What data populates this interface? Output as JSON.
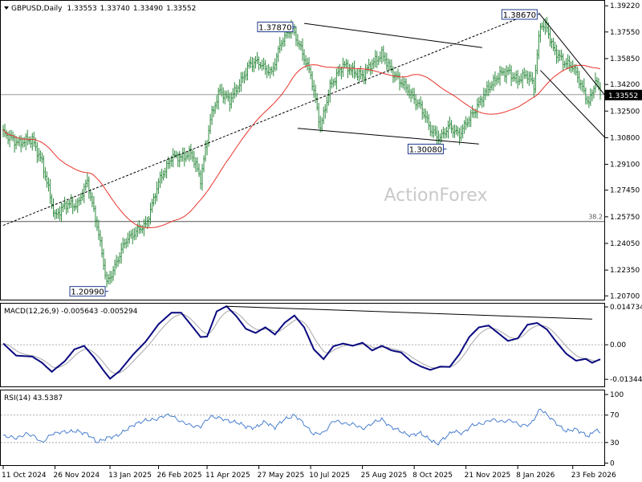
{
  "chart_data": [
    {
      "panel": "price",
      "type": "candlestick",
      "title": "GBPUSD,Daily",
      "ohlc": [
        "1.33553",
        "1.33740",
        "1.33490",
        "1.33552"
      ],
      "last_price": "1.33552",
      "watermark": "ActionForex",
      "ylim": [
        1.2046,
        1.3954
      ],
      "y_ticks": [
        "1.39220",
        "1.37550",
        "1.35850",
        "1.34200",
        "1.32500",
        "1.30800",
        "1.29100",
        "1.27450",
        "1.25750",
        "1.24050",
        "1.22350",
        "1.20700"
      ],
      "y_tick_values": [
        1.3922,
        1.3755,
        1.3585,
        1.342,
        1.325,
        1.308,
        1.291,
        1.2745,
        1.2575,
        1.2405,
        1.2235,
        1.207
      ],
      "x_ticks": [
        "11 Oct 2024",
        "26 Nov 2024",
        "13 Jan 2025",
        "26 Feb 2025",
        "11 Apr 2025",
        "27 May 2025",
        "10 Jul 2025",
        "25 Aug 2025",
        "8 Oct 2025",
        "21 Nov 2025",
        "8 Jan 2026",
        "23 Feb 2026"
      ],
      "x_tick_bars": [
        0,
        32,
        66,
        96,
        126,
        158,
        190,
        222,
        254,
        286,
        318,
        352
      ],
      "bar_count": 370,
      "anchors": [
        [
          0,
          1.3105
        ],
        [
          10,
          1.3045
        ],
        [
          18,
          1.307
        ],
        [
          24,
          1.292
        ],
        [
          32,
          1.258
        ],
        [
          40,
          1.266
        ],
        [
          46,
          1.265
        ],
        [
          52,
          1.28
        ],
        [
          58,
          1.252
        ],
        [
          64,
          1.215
        ],
        [
          70,
          1.228
        ],
        [
          76,
          1.243
        ],
        [
          82,
          1.248
        ],
        [
          88,
          1.252
        ],
        [
          96,
          1.279
        ],
        [
          104,
          1.296
        ],
        [
          110,
          1.295
        ],
        [
          116,
          1.299
        ],
        [
          122,
          1.281
        ],
        [
          128,
          1.32
        ],
        [
          134,
          1.338
        ],
        [
          140,
          1.332
        ],
        [
          146,
          1.342
        ],
        [
          152,
          1.355
        ],
        [
          158,
          1.356
        ],
        [
          166,
          1.349
        ],
        [
          172,
          1.37
        ],
        [
          178,
          1.378
        ],
        [
          184,
          1.365
        ],
        [
          190,
          1.348
        ],
        [
          196,
          1.315
        ],
        [
          202,
          1.34
        ],
        [
          210,
          1.355
        ],
        [
          216,
          1.35
        ],
        [
          222,
          1.348
        ],
        [
          228,
          1.355
        ],
        [
          234,
          1.362
        ],
        [
          240,
          1.35
        ],
        [
          246,
          1.344
        ],
        [
          252,
          1.335
        ],
        [
          258,
          1.328
        ],
        [
          264,
          1.313
        ],
        [
          270,
          1.308
        ],
        [
          276,
          1.315
        ],
        [
          282,
          1.31
        ],
        [
          288,
          1.32
        ],
        [
          294,
          1.33
        ],
        [
          300,
          1.34
        ],
        [
          306,
          1.348
        ],
        [
          312,
          1.35
        ],
        [
          318,
          1.345
        ],
        [
          324,
          1.348
        ],
        [
          328,
          1.342
        ],
        [
          332,
          1.38
        ],
        [
          336,
          1.378
        ],
        [
          340,
          1.365
        ],
        [
          346,
          1.356
        ],
        [
          352,
          1.354
        ],
        [
          358,
          1.339
        ],
        [
          362,
          1.33
        ],
        [
          366,
          1.345
        ],
        [
          369,
          1.3355
        ]
      ],
      "moving_average": {
        "period": 55,
        "color": "#e8332b"
      },
      "h_lines": [
        {
          "value": 1.3355,
          "color": "#9a9a9a",
          "label": ""
        },
        {
          "value": 1.2545,
          "color": "#555555",
          "label": "38.2"
        }
      ],
      "trend_lines": [
        {
          "from": [
            0,
            1.252
          ],
          "to": [
            330,
            1.389
          ],
          "style": "dashed"
        },
        {
          "from": [
            186,
            1.381
          ],
          "to": [
            296,
            1.3655
          ],
          "style": "solid"
        },
        {
          "from": [
            182,
            1.314
          ],
          "to": [
            294,
            1.304
          ],
          "style": "solid"
        },
        {
          "from": [
            331,
            1.3877
          ],
          "to": [
            372,
            1.335
          ],
          "style": "solid"
        },
        {
          "from": [
            332,
            1.351
          ],
          "to": [
            372,
            1.308
          ],
          "style": "solid"
        }
      ],
      "annotations": [
        {
          "text": "1.37870",
          "bar": 180,
          "value": 1.3787,
          "side": "left"
        },
        {
          "text": "1.38670",
          "bar": 331,
          "value": 1.3867,
          "side": "left"
        },
        {
          "text": "1.30080",
          "bar": 273,
          "value": 1.3008,
          "side": "left"
        },
        {
          "text": "1.20990",
          "bar": 64,
          "value": 1.2099,
          "side": "left"
        }
      ],
      "colors": {
        "candles": "#2d8a3e",
        "label_box": "#1f3b8f",
        "grid": "#dddddd"
      }
    },
    {
      "panel": "macd",
      "type": "line",
      "title": "MACD(12,26,9) -0.005643 -0.005294",
      "ylim": [
        -0.0162,
        0.016
      ],
      "y_ticks": [
        "0.014734",
        "0.00",
        "-0.013442"
      ],
      "y_tick_values": [
        0.014734,
        0.0,
        -0.013442
      ],
      "series": [
        {
          "name": "MACD",
          "color": "#0a0a80",
          "points": [
            [
              0,
              0.0005
            ],
            [
              8,
              -0.0042
            ],
            [
              18,
              -0.0046
            ],
            [
              24,
              -0.007
            ],
            [
              30,
              -0.0105
            ],
            [
              38,
              -0.0064
            ],
            [
              44,
              -0.0018
            ],
            [
              50,
              -0.0004
            ],
            [
              56,
              -0.0048
            ],
            [
              62,
              -0.01
            ],
            [
              66,
              -0.0132
            ],
            [
              72,
              -0.0102
            ],
            [
              80,
              -0.004
            ],
            [
              88,
              0.0012
            ],
            [
              96,
              0.008
            ],
            [
              104,
              0.0125
            ],
            [
              110,
              0.0125
            ],
            [
              116,
              0.0078
            ],
            [
              122,
              0.003
            ],
            [
              126,
              0.0032
            ],
            [
              132,
              0.013
            ],
            [
              138,
              0.015
            ],
            [
              144,
              0.0112
            ],
            [
              150,
              0.0062
            ],
            [
              156,
              0.0046
            ],
            [
              162,
              0.0068
            ],
            [
              168,
              0.004
            ],
            [
              174,
              0.0086
            ],
            [
              180,
              0.0114
            ],
            [
              186,
              0.0068
            ],
            [
              192,
              -0.0018
            ],
            [
              198,
              -0.0056
            ],
            [
              204,
              -0.0006
            ],
            [
              210,
              0.0005
            ],
            [
              216,
              -0.0004
            ],
            [
              222,
              0.0008
            ],
            [
              228,
              -0.0022
            ],
            [
              234,
              -0.0004
            ],
            [
              240,
              -0.0022
            ],
            [
              246,
              -0.003
            ],
            [
              252,
              -0.0064
            ],
            [
              258,
              -0.0084
            ],
            [
              264,
              -0.0098
            ],
            [
              270,
              -0.0085
            ],
            [
              276,
              -0.0086
            ],
            [
              282,
              -0.0036
            ],
            [
              288,
              0.003
            ],
            [
              294,
              0.0068
            ],
            [
              300,
              0.0075
            ],
            [
              306,
              0.0045
            ],
            [
              312,
              0.0015
            ],
            [
              318,
              0.0025
            ],
            [
              324,
              0.0078
            ],
            [
              330,
              0.0085
            ],
            [
              336,
              0.006
            ],
            [
              342,
              0.001
            ],
            [
              348,
              -0.0035
            ],
            [
              354,
              -0.0062
            ],
            [
              360,
              -0.0055
            ],
            [
              364,
              -0.007
            ],
            [
              369,
              -0.0056
            ]
          ]
        },
        {
          "name": "Signal",
          "color": "#a8a8a8",
          "ema": 9
        }
      ],
      "trend_line": {
        "from": [
          138,
          0.015
        ],
        "to": [
          364,
          0.01
        ]
      },
      "zero_line_color": "#aaaaaa"
    },
    {
      "panel": "rsi",
      "type": "line",
      "title": "RSI(14) 43.5387",
      "ylim": [
        -3,
        106
      ],
      "y_ticks": [
        "100",
        "70",
        "30",
        "0"
      ],
      "y_tick_values": [
        100,
        70,
        30,
        0
      ],
      "levels": [
        70,
        30
      ],
      "series": [
        {
          "name": "RSI",
          "color": "#4a7fcf",
          "points": [
            [
              0,
              40
            ],
            [
              8,
              36
            ],
            [
              14,
              43
            ],
            [
              20,
              38
            ],
            [
              24,
              30
            ],
            [
              30,
              42
            ],
            [
              36,
              46
            ],
            [
              40,
              45
            ],
            [
              46,
              47
            ],
            [
              52,
              42
            ],
            [
              58,
              31
            ],
            [
              64,
              36
            ],
            [
              70,
              40
            ],
            [
              76,
              48
            ],
            [
              82,
              58
            ],
            [
              88,
              62
            ],
            [
              94,
              64
            ],
            [
              100,
              69
            ],
            [
              104,
              70
            ],
            [
              110,
              60
            ],
            [
              116,
              55
            ],
            [
              122,
              53
            ],
            [
              128,
              68
            ],
            [
              132,
              67
            ],
            [
              138,
              62
            ],
            [
              144,
              60
            ],
            [
              150,
              53
            ],
            [
              156,
              52
            ],
            [
              162,
              60
            ],
            [
              168,
              52
            ],
            [
              174,
              64
            ],
            [
              180,
              70
            ],
            [
              186,
              57
            ],
            [
              192,
              42
            ],
            [
              198,
              44
            ],
            [
              204,
              62
            ],
            [
              210,
              58
            ],
            [
              216,
              57
            ],
            [
              222,
              50
            ],
            [
              228,
              58
            ],
            [
              234,
              64
            ],
            [
              240,
              52
            ],
            [
              246,
              46
            ],
            [
              252,
              40
            ],
            [
              258,
              44
            ],
            [
              264,
              34
            ],
            [
              268,
              27
            ],
            [
              272,
              36
            ],
            [
              278,
              46
            ],
            [
              284,
              44
            ],
            [
              290,
              55
            ],
            [
              296,
              58
            ],
            [
              302,
              63
            ],
            [
              308,
              61
            ],
            [
              314,
              62
            ],
            [
              320,
              55
            ],
            [
              326,
              56
            ],
            [
              332,
              80
            ],
            [
              336,
              70
            ],
            [
              342,
              58
            ],
            [
              348,
              46
            ],
            [
              354,
              50
            ],
            [
              358,
              44
            ],
            [
              362,
              38
            ],
            [
              366,
              50
            ],
            [
              369,
              43.5
            ]
          ]
        }
      ]
    }
  ]
}
